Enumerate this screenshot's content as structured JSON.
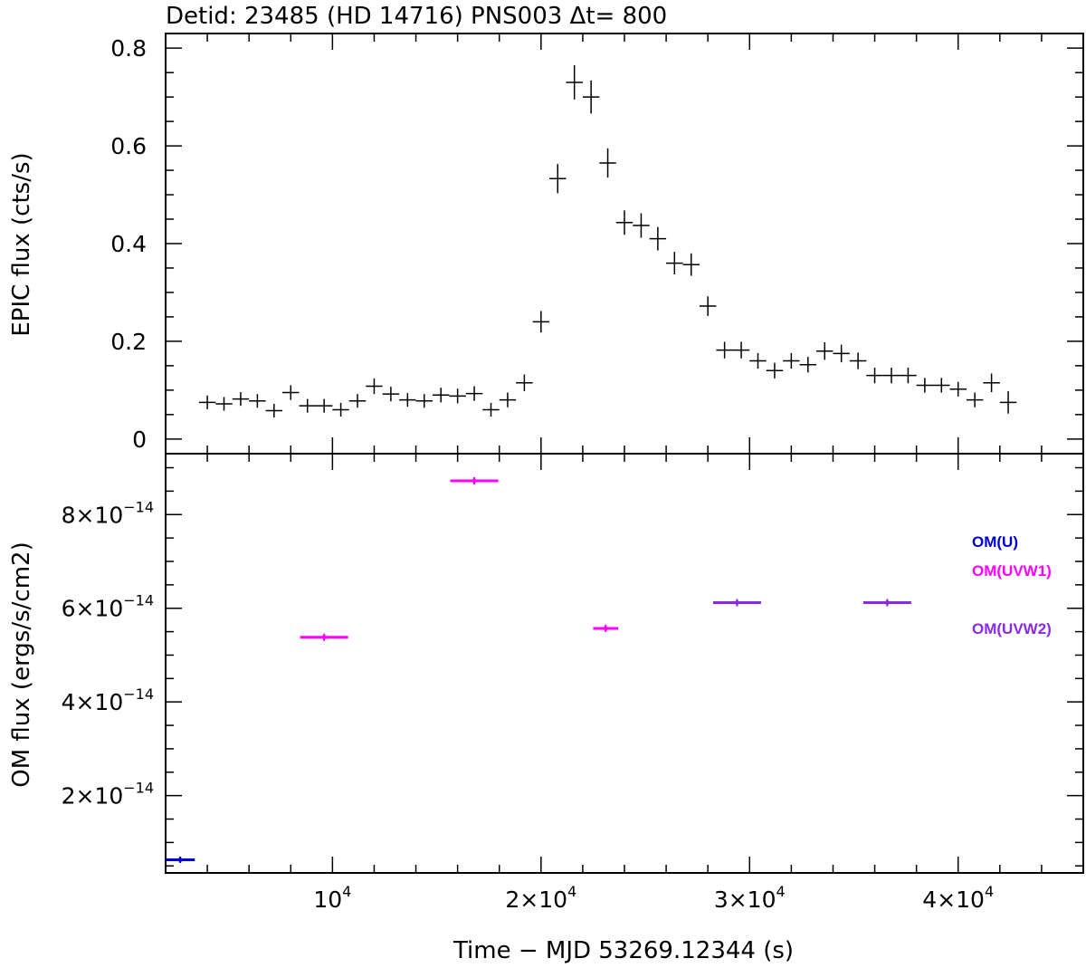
{
  "chart_data": [
    {
      "type": "scatter",
      "title": "Detid:  23485 (HD 14716)    PNS003    Δt=  800",
      "ylabel": "EPIC flux (cts/s)",
      "xlim": [
        2000,
        46000
      ],
      "ylim": [
        -0.03,
        0.83
      ],
      "y_ticks": [
        0,
        0.2,
        0.4,
        0.6,
        0.8
      ],
      "y_tick_labels": [
        "0",
        "0.2",
        "0.4",
        "0.6",
        "0.8"
      ],
      "series": [
        {
          "color": "#000000",
          "x": [
            4000,
            4800,
            5600,
            6400,
            7200,
            8000,
            8800,
            9600,
            10400,
            11200,
            12000,
            12800,
            13600,
            14400,
            15200,
            16000,
            16800,
            17600,
            18400,
            19200,
            20000,
            20800,
            21600,
            22400,
            23200,
            24000,
            24800,
            25600,
            26400,
            27200,
            28000,
            28800,
            29600,
            30400,
            31200,
            32000,
            32800,
            33600,
            34400,
            35200,
            36000,
            36800,
            37600,
            38400,
            39200,
            40000,
            40800,
            41600,
            42400
          ],
          "y": [
            0.075,
            0.072,
            0.082,
            0.078,
            0.058,
            0.095,
            0.068,
            0.068,
            0.06,
            0.078,
            0.108,
            0.092,
            0.08,
            0.078,
            0.09,
            0.088,
            0.093,
            0.06,
            0.08,
            0.115,
            0.24,
            0.533,
            0.73,
            0.7,
            0.565,
            0.443,
            0.437,
            0.41,
            0.36,
            0.357,
            0.272,
            0.182,
            0.182,
            0.16,
            0.14,
            0.16,
            0.152,
            0.18,
            0.175,
            0.16,
            0.13,
            0.13,
            0.13,
            0.11,
            0.11,
            0.102,
            0.08,
            0.115,
            0.075
          ],
          "yerr": [
            0.014,
            0.014,
            0.014,
            0.014,
            0.014,
            0.015,
            0.014,
            0.014,
            0.014,
            0.014,
            0.016,
            0.015,
            0.014,
            0.014,
            0.015,
            0.015,
            0.015,
            0.014,
            0.015,
            0.017,
            0.022,
            0.03,
            0.035,
            0.034,
            0.03,
            0.025,
            0.025,
            0.024,
            0.023,
            0.023,
            0.02,
            0.017,
            0.017,
            0.016,
            0.016,
            0.016,
            0.016,
            0.018,
            0.018,
            0.017,
            0.016,
            0.016,
            0.016,
            0.015,
            0.015,
            0.015,
            0.015,
            0.019,
            0.023
          ]
        }
      ]
    },
    {
      "type": "scatter",
      "xlabel": "Time − MJD 53269.12344 (s)",
      "ylabel": "OM flux (ergs/s/cm2)",
      "xlim": [
        2000,
        46000
      ],
      "ylim": [
        3.5e-15,
        9.3e-14
      ],
      "x_ticks": [
        10000,
        20000,
        30000,
        40000
      ],
      "x_tick_labels": [
        {
          "mant": "10",
          "exp": "4"
        },
        {
          "mant": "2×10",
          "exp": "4"
        },
        {
          "mant": "3×10",
          "exp": "4"
        },
        {
          "mant": "4×10",
          "exp": "4"
        }
      ],
      "y_ticks": [
        2e-14,
        4e-14,
        6e-14,
        8e-14
      ],
      "y_tick_labels": [
        {
          "mant": "2×10",
          "exp": "−14"
        },
        {
          "mant": "4×10",
          "exp": "−14"
        },
        {
          "mant": "6×10",
          "exp": "−14"
        },
        {
          "mant": "8×10",
          "exp": "−14"
        }
      ],
      "legend": {
        "placement": "right",
        "entries": [
          {
            "label": "OM(U)",
            "color": "#0000cc"
          },
          {
            "label": "OM(UVW1)",
            "color": "#ff00ff"
          },
          {
            "label": "OM(UVW2)",
            "color": "#8a2be2"
          }
        ]
      },
      "series": [
        {
          "name": "OM(U)",
          "color": "#0000cc",
          "points": [
            {
              "x": 2700,
              "xerr": 700,
              "y": 6.3e-15,
              "yerr": 1e-16
            }
          ]
        },
        {
          "name": "OM(UVW1)",
          "color": "#ff00ff",
          "points": [
            {
              "x": 9600,
              "xerr": 1150,
              "y": 5.38e-14,
              "yerr": 2e-16
            },
            {
              "x": 16800,
              "xerr": 1150,
              "y": 8.72e-14,
              "yerr": 2e-16
            },
            {
              "x": 23100,
              "xerr": 600,
              "y": 5.57e-14,
              "yerr": 2e-16
            }
          ]
        },
        {
          "name": "OM(UVW2)",
          "color": "#8a2be2",
          "points": [
            {
              "x": 29400,
              "xerr": 1150,
              "y": 6.12e-14,
              "yerr": 2e-16
            },
            {
              "x": 36600,
              "xerr": 1150,
              "y": 6.12e-14,
              "yerr": 2e-16
            }
          ]
        }
      ]
    }
  ]
}
